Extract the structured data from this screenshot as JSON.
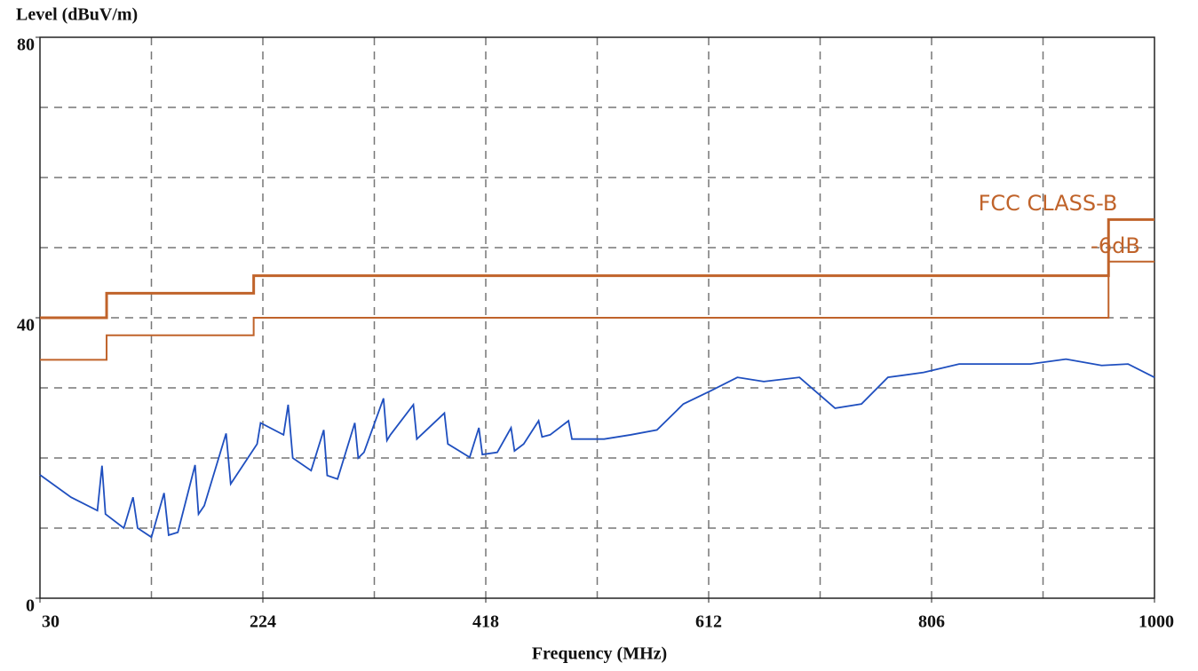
{
  "chart_data": {
    "type": "line",
    "ylabel": "Level (dBuV/m)",
    "xlabel": "Frequency (MHz)",
    "xlim": [
      30,
      1000
    ],
    "xticks": [
      30,
      224,
      418,
      612,
      806,
      1000
    ],
    "xgrid": [
      127,
      224,
      321,
      418,
      515,
      612,
      709,
      806,
      903
    ],
    "ylim": [
      0,
      80
    ],
    "yticks": [
      0,
      40,
      80
    ],
    "ygrid": [
      10,
      20,
      30,
      40,
      50,
      60,
      70
    ],
    "grid": true,
    "series": [
      {
        "name": "FCC CLASS-B",
        "color": "#c0632a",
        "step": true,
        "x": [
          30,
          88,
          216,
          960,
          1000
        ],
        "values": [
          40,
          43.5,
          46,
          54,
          54
        ]
      },
      {
        "name": "-6dB",
        "color": "#c0632a",
        "step": true,
        "x": [
          30,
          88,
          216,
          960,
          1000
        ],
        "values": [
          34,
          37.5,
          40,
          48,
          48
        ]
      },
      {
        "color": "#1f4fbf",
        "x": [
          30,
          57,
          80,
          84,
          87,
          103,
          111,
          115,
          127,
          138,
          142,
          150,
          165,
          168,
          173,
          192,
          196,
          219,
          222,
          242,
          246,
          250,
          266,
          277,
          280,
          289,
          304,
          307,
          312,
          329,
          332,
          335,
          355,
          358,
          382,
          385,
          404,
          412,
          415,
          428,
          440,
          443,
          451,
          464,
          467,
          474,
          490,
          493,
          498,
          521,
          544,
          567,
          590,
          614,
          637,
          660,
          691,
          722,
          745,
          768,
          799,
          830,
          861,
          892,
          923,
          954,
          977,
          1000
        ],
        "values": [
          17.6,
          14.4,
          12.5,
          18.9,
          12,
          10,
          14.4,
          10,
          8.7,
          15,
          9,
          9.4,
          19,
          12,
          13.2,
          23.5,
          16.3,
          22,
          25,
          23.3,
          27.6,
          20,
          18.2,
          24,
          17.5,
          17,
          25,
          20,
          20.8,
          28.5,
          22.5,
          23.3,
          27.6,
          22.7,
          26.4,
          22,
          20.1,
          24.3,
          20.5,
          20.8,
          24.3,
          21,
          22,
          25.3,
          23,
          23.3,
          25.3,
          22.7,
          22.7,
          22.7,
          23.3,
          24,
          27.7,
          29.6,
          31.5,
          30.9,
          31.5,
          27.1,
          27.7,
          31.5,
          32.2,
          33.4,
          33.4,
          33.4,
          34.1,
          33.2,
          33.4,
          31.5
        ]
      }
    ]
  }
}
